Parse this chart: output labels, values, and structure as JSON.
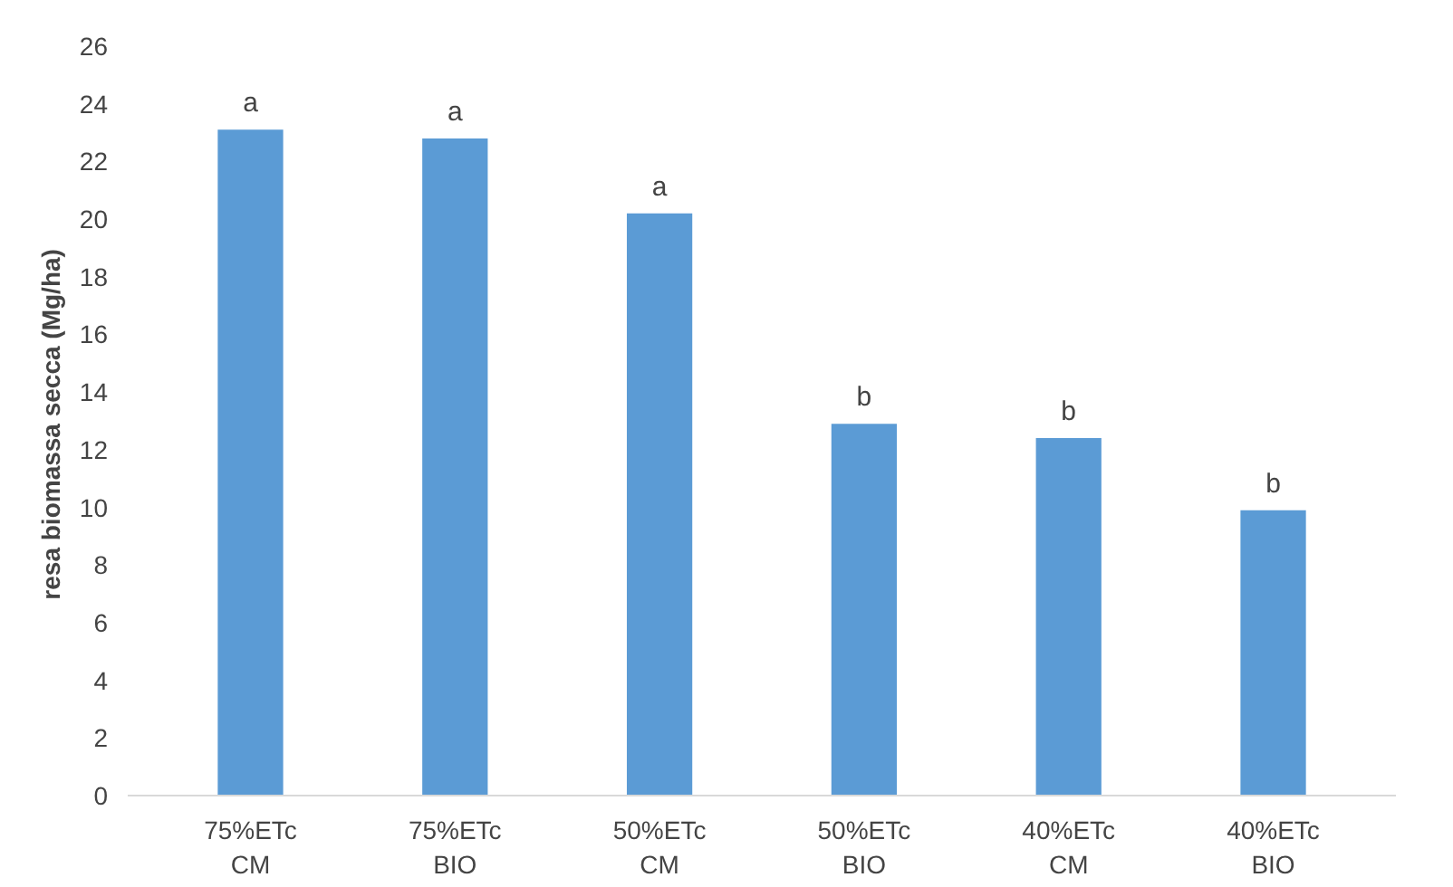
{
  "chart_data": {
    "type": "bar",
    "ylabel": "resa biomassa  secca (Mg/ha)",
    "categories": [
      "75%ETc\nCM",
      "75%ETc\nBIO",
      "50%ETc\nCM",
      "50%ETc\nBIO",
      "40%ETc\nCM",
      "40%ETc\nBIO"
    ],
    "values": [
      23.1,
      22.8,
      20.2,
      12.9,
      12.4,
      9.9
    ],
    "color": "#5b9bd5",
    "ylim": [
      0,
      26
    ],
    "yticks": [
      0,
      2,
      4,
      6,
      8,
      10,
      12,
      14,
      16,
      18,
      20,
      22,
      24,
      26
    ],
    "grid": false,
    "annotations": [
      {
        "text": "a",
        "x": "75%ETc\nCM",
        "y": 23.1
      },
      {
        "text": "a",
        "x": "75%ETc\nBIO",
        "y": 22.8
      },
      {
        "text": "a",
        "x": "50%ETc\nCM",
        "y": 20.2
      },
      {
        "text": "b",
        "x": "50%ETc\nBIO",
        "y": 12.9
      },
      {
        "text": "b",
        "x": "40%ETc\nCM",
        "y": 12.4
      },
      {
        "text": "b",
        "x": "40%ETc\nBIO",
        "y": 9.9
      }
    ]
  }
}
